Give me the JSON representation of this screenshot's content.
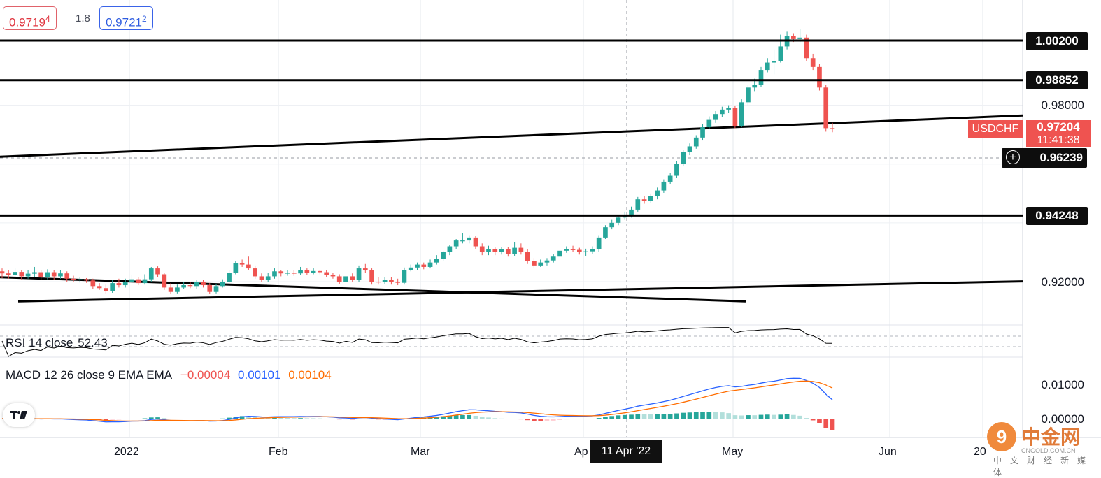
{
  "quote": {
    "bid_main": "0.9719",
    "bid_sup": "4",
    "spread": "1.8",
    "ask_main": "0.9721",
    "ask_sup": "2"
  },
  "price_scale": {
    "labels": [
      "0.98000",
      "0.92000",
      "0.01000",
      "0.00000"
    ],
    "levels": [
      "1.00200",
      "0.98852",
      "0.94248"
    ],
    "crosshair_price": "0.96239",
    "symbol": "USDCHF",
    "last_price": "0.97204",
    "countdown": "11:41:38"
  },
  "time_axis": {
    "labels": [
      "2022",
      "Feb",
      "Mar",
      "Ap",
      "May",
      "Jun",
      "20"
    ],
    "crosshair_date": "11 Apr '22"
  },
  "rsi": {
    "title": "RSI 14 close",
    "value": "52.43"
  },
  "macd": {
    "title": "MACD 12 26 close 9 EMA EMA",
    "hist": "−0.00004",
    "macd": "0.00101",
    "signal": "0.00104"
  },
  "watermark": {
    "name": "中金网",
    "url": "CNGOLD.COM.CN",
    "sub": "中文财经新媒体"
  },
  "colors": {
    "up": "#26a69a",
    "down": "#ef5350",
    "macd_line": "#2962ff",
    "signal_line": "#ff6d00"
  },
  "chart_data": {
    "type": "candlestick",
    "symbol": "USDCHF",
    "price_range": [
      0.9135,
      1.0085
    ],
    "horizontal_levels": [
      1.002,
      0.98852,
      0.94248
    ],
    "trendlines": [
      {
        "from": [
          0,
          0.9625
        ],
        "to": [
          1462,
          0.9765
        ]
      },
      {
        "from": [
          0,
          0.9215
        ],
        "to": [
          1066,
          0.9133
        ]
      },
      {
        "from": [
          26,
          0.9133
        ],
        "to": [
          1462,
          0.9201
        ]
      }
    ],
    "candles": [
      [
        0.9235,
        0.9228,
        0.9245,
        0.9212
      ],
      [
        0.9228,
        0.9222,
        0.924,
        0.921
      ],
      [
        0.9222,
        0.9233,
        0.9245,
        0.9215
      ],
      [
        0.9233,
        0.9218,
        0.924,
        0.9205
      ],
      [
        0.9218,
        0.9227,
        0.9238,
        0.921
      ],
      [
        0.9227,
        0.9232,
        0.925,
        0.9215
      ],
      [
        0.9232,
        0.9215,
        0.924,
        0.9205
      ],
      [
        0.9215,
        0.9232,
        0.9242,
        0.9208
      ],
      [
        0.9232,
        0.9218,
        0.924,
        0.9205
      ],
      [
        0.9218,
        0.9228,
        0.924,
        0.921
      ],
      [
        0.9228,
        0.921,
        0.9235,
        0.92
      ],
      [
        0.921,
        0.9205,
        0.922,
        0.9198
      ],
      [
        0.9205,
        0.9208,
        0.9215,
        0.9197
      ],
      [
        0.9208,
        0.9204,
        0.9212,
        0.9196
      ],
      [
        0.9204,
        0.9185,
        0.921,
        0.9176
      ],
      [
        0.9185,
        0.9178,
        0.9195,
        0.9172
      ],
      [
        0.9178,
        0.9168,
        0.919,
        0.916
      ],
      [
        0.9168,
        0.9195,
        0.9205,
        0.9162
      ],
      [
        0.9195,
        0.9188,
        0.921,
        0.918
      ],
      [
        0.9188,
        0.92,
        0.921,
        0.918
      ],
      [
        0.92,
        0.9208,
        0.9222,
        0.9195
      ],
      [
        0.9208,
        0.9195,
        0.9215,
        0.9188
      ],
      [
        0.9195,
        0.9208,
        0.9225,
        0.919
      ],
      [
        0.9208,
        0.9245,
        0.925,
        0.92
      ],
      [
        0.9245,
        0.9225,
        0.9252,
        0.9215
      ],
      [
        0.9225,
        0.918,
        0.923,
        0.9172
      ],
      [
        0.918,
        0.9165,
        0.9195,
        0.9158
      ],
      [
        0.9165,
        0.918,
        0.919,
        0.916
      ],
      [
        0.918,
        0.9188,
        0.9198,
        0.9175
      ],
      [
        0.9188,
        0.9185,
        0.92,
        0.9178
      ],
      [
        0.9185,
        0.9198,
        0.9205,
        0.9175
      ],
      [
        0.9198,
        0.9188,
        0.9205,
        0.918
      ],
      [
        0.9188,
        0.9165,
        0.9195,
        0.9158
      ],
      [
        0.9165,
        0.9185,
        0.9192,
        0.916
      ],
      [
        0.9185,
        0.92,
        0.9208,
        0.918
      ],
      [
        0.92,
        0.923,
        0.924,
        0.9195
      ],
      [
        0.923,
        0.9262,
        0.927,
        0.9225
      ],
      [
        0.9262,
        0.9258,
        0.9275,
        0.925
      ],
      [
        0.9258,
        0.9245,
        0.9285,
        0.9238
      ],
      [
        0.9245,
        0.9218,
        0.9255,
        0.921
      ],
      [
        0.9218,
        0.9205,
        0.9228,
        0.9198
      ],
      [
        0.9205,
        0.9218,
        0.923,
        0.92
      ],
      [
        0.9218,
        0.9235,
        0.9245,
        0.921
      ],
      [
        0.9235,
        0.9228,
        0.924,
        0.9218
      ],
      [
        0.9228,
        0.923,
        0.924,
        0.922
      ],
      [
        0.923,
        0.9228,
        0.9238,
        0.922
      ],
      [
        0.9228,
        0.9238,
        0.925,
        0.9222
      ],
      [
        0.9238,
        0.923,
        0.9245,
        0.9222
      ],
      [
        0.923,
        0.9236,
        0.9245,
        0.9225
      ],
      [
        0.9236,
        0.9232,
        0.924,
        0.9225
      ],
      [
        0.9232,
        0.9222,
        0.9238,
        0.9215
      ],
      [
        0.9222,
        0.9218,
        0.923,
        0.921
      ],
      [
        0.9218,
        0.92,
        0.9225,
        0.9192
      ],
      [
        0.92,
        0.9218,
        0.9225,
        0.9195
      ],
      [
        0.9218,
        0.9205,
        0.9228,
        0.9198
      ],
      [
        0.9205,
        0.9245,
        0.9255,
        0.92
      ],
      [
        0.9245,
        0.9238,
        0.926,
        0.923
      ],
      [
        0.9238,
        0.92,
        0.9245,
        0.919
      ],
      [
        0.92,
        0.9198,
        0.9215,
        0.919
      ],
      [
        0.9198,
        0.9205,
        0.9215,
        0.9192
      ],
      [
        0.9205,
        0.92,
        0.9215,
        0.919
      ],
      [
        0.92,
        0.9196,
        0.921,
        0.9188
      ],
      [
        0.9196,
        0.924,
        0.9248,
        0.919
      ],
      [
        0.924,
        0.9248,
        0.9258,
        0.9235
      ],
      [
        0.9248,
        0.9258,
        0.9265,
        0.924
      ],
      [
        0.9258,
        0.925,
        0.9265,
        0.9242
      ],
      [
        0.925,
        0.9265,
        0.9275,
        0.9245
      ],
      [
        0.9265,
        0.9278,
        0.929,
        0.9258
      ],
      [
        0.9278,
        0.93,
        0.9305,
        0.927
      ],
      [
        0.93,
        0.932,
        0.9325,
        0.929
      ],
      [
        0.932,
        0.934,
        0.9345,
        0.931
      ],
      [
        0.934,
        0.934,
        0.9365,
        0.933
      ],
      [
        0.934,
        0.935,
        0.9358,
        0.933
      ],
      [
        0.935,
        0.932,
        0.9355,
        0.931
      ],
      [
        0.932,
        0.93,
        0.933,
        0.929
      ],
      [
        0.93,
        0.931,
        0.9322,
        0.929
      ],
      [
        0.931,
        0.93,
        0.9318,
        0.929
      ],
      [
        0.93,
        0.931,
        0.9318,
        0.9292
      ],
      [
        0.931,
        0.9295,
        0.9318,
        0.9285
      ],
      [
        0.9295,
        0.9315,
        0.9335,
        0.9288
      ],
      [
        0.9315,
        0.9302,
        0.933,
        0.9292
      ],
      [
        0.9302,
        0.927,
        0.931,
        0.926
      ],
      [
        0.927,
        0.9255,
        0.928,
        0.9248
      ],
      [
        0.9255,
        0.9265,
        0.9275,
        0.925
      ],
      [
        0.9265,
        0.9272,
        0.928,
        0.9255
      ],
      [
        0.9272,
        0.9285,
        0.9295,
        0.9265
      ],
      [
        0.9285,
        0.9305,
        0.9312,
        0.928
      ],
      [
        0.9305,
        0.931,
        0.932,
        0.9298
      ],
      [
        0.931,
        0.9308,
        0.9322,
        0.93
      ],
      [
        0.9308,
        0.93,
        0.9315,
        0.9292
      ],
      [
        0.93,
        0.9303,
        0.9312,
        0.9288
      ],
      [
        0.9303,
        0.931,
        0.932,
        0.9295
      ],
      [
        0.931,
        0.935,
        0.9358,
        0.9302
      ],
      [
        0.935,
        0.9385,
        0.9392,
        0.9345
      ],
      [
        0.9385,
        0.94,
        0.941,
        0.9378
      ],
      [
        0.94,
        0.9418,
        0.9428,
        0.9392
      ],
      [
        0.9418,
        0.9425,
        0.9438,
        0.941
      ],
      [
        0.9425,
        0.9445,
        0.9455,
        0.9418
      ],
      [
        0.9445,
        0.948,
        0.9488,
        0.9438
      ],
      [
        0.948,
        0.9475,
        0.9492,
        0.9465
      ],
      [
        0.9475,
        0.949,
        0.95,
        0.9468
      ],
      [
        0.949,
        0.951,
        0.952,
        0.948
      ],
      [
        0.951,
        0.954,
        0.9548,
        0.9502
      ],
      [
        0.954,
        0.956,
        0.957,
        0.9532
      ],
      [
        0.956,
        0.96,
        0.961,
        0.9552
      ],
      [
        0.96,
        0.964,
        0.9648,
        0.9592
      ],
      [
        0.964,
        0.966,
        0.967,
        0.963
      ],
      [
        0.966,
        0.969,
        0.9698,
        0.9652
      ],
      [
        0.969,
        0.9725,
        0.9735,
        0.968
      ],
      [
        0.9725,
        0.975,
        0.9762,
        0.9718
      ],
      [
        0.975,
        0.977,
        0.978,
        0.974
      ],
      [
        0.977,
        0.9785,
        0.9795,
        0.976
      ],
      [
        0.9785,
        0.979,
        0.98,
        0.9775
      ],
      [
        0.979,
        0.973,
        0.9798,
        0.9722
      ],
      [
        0.973,
        0.981,
        0.982,
        0.9725
      ],
      [
        0.981,
        0.986,
        0.987,
        0.98
      ],
      [
        0.986,
        0.987,
        0.989,
        0.9848
      ],
      [
        0.987,
        0.992,
        0.993,
        0.9862
      ],
      [
        0.992,
        0.9945,
        0.996,
        0.9912
      ],
      [
        0.9945,
        0.995,
        0.999,
        0.9905
      ],
      [
        0.995,
        1.0,
        1.004,
        0.9945
      ],
      [
        1.0,
        1.0035,
        1.005,
        0.999
      ],
      [
        1.0035,
        1.0025,
        1.0045,
        1.0015
      ],
      [
        1.0025,
        1.003,
        1.006,
        1.0015
      ],
      [
        1.003,
        0.996,
        1.004,
        0.995
      ],
      [
        0.996,
        0.993,
        0.9975,
        0.992
      ],
      [
        0.993,
        0.986,
        0.994,
        0.985
      ],
      [
        0.986,
        0.9722,
        0.987,
        0.971
      ],
      [
        0.9722,
        0.972,
        0.974,
        0.9708
      ]
    ]
  }
}
